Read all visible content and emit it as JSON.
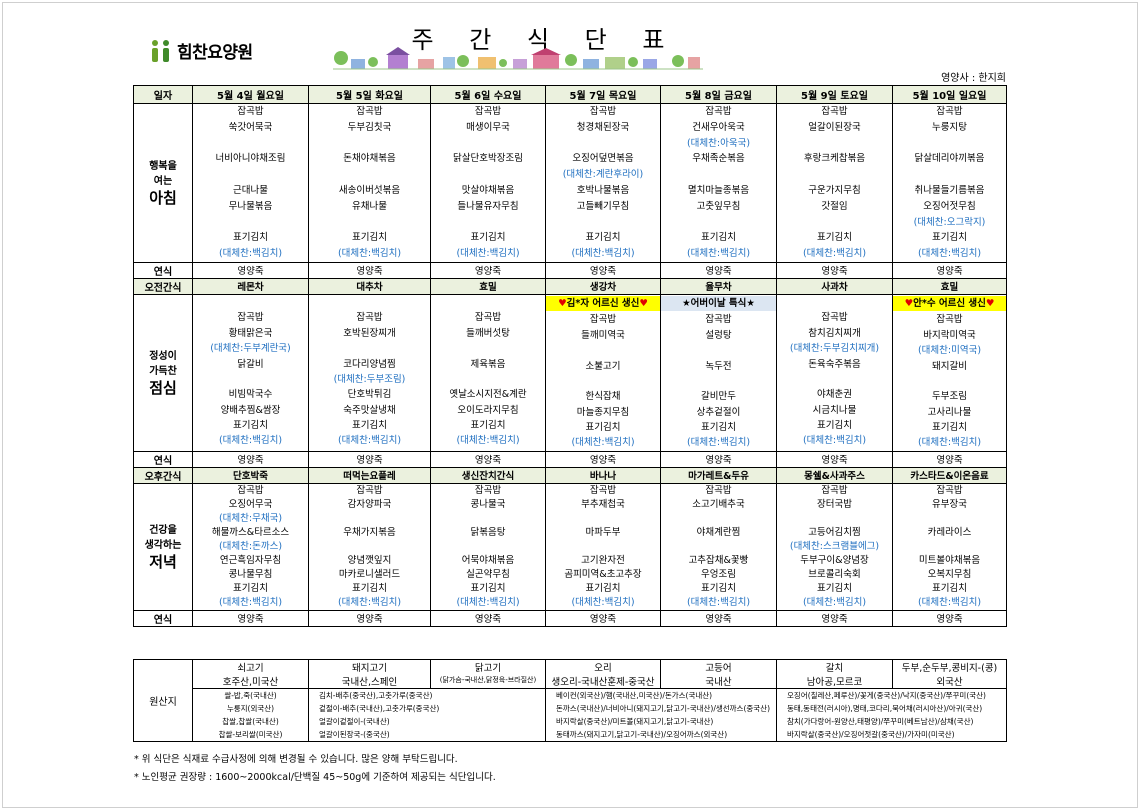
{
  "header": {
    "logo": "힘찬요양원",
    "title": "주 간 식 단 표",
    "dietitian": "영양사 : 한지희"
  },
  "menu": {
    "corner": "일자",
    "days": [
      "5월 4일 월요일",
      "5월 5일 화요일",
      "5월 6일 수요일",
      "5월 7일 목요일",
      "5월 8일 금요일",
      "5월 9일 토요일",
      "5월 10일 일요일"
    ],
    "sections": [
      {
        "label_lines": [
          "행복을",
          "여는",
          "아침"
        ],
        "rows": [
          [
            "잡곡밥",
            "잡곡밥",
            "잡곡밥",
            "잡곡밥",
            "잡곡밥",
            "잡곡밥",
            "잡곡밥"
          ],
          [
            "쑥갓어묵국",
            "두부김칫국",
            "매생이무국",
            "청경채된장국",
            "건새우아욱국",
            "얼갈이된장국",
            "누룽지탕"
          ],
          [
            null,
            null,
            null,
            null,
            "(대체찬:아욱국)",
            null,
            null
          ],
          [
            "너비아니야채조림",
            "돈채야채볶음",
            "닭살단호박장조림",
            "오징어덮면볶음",
            "우채족순볶음",
            "후랑크케찹볶음",
            "닭살데리야끼볶음"
          ],
          [
            null,
            null,
            null,
            "(대체찬:계란후라이)",
            null,
            null,
            null
          ],
          [
            "근대나물",
            "새송이버섯볶음",
            "맛살야채볶음",
            "호박나물볶음",
            "멸치마늘종볶음",
            "구운가지무침",
            "취나물들기름볶음"
          ],
          [
            "무나물볶음",
            "유채나물",
            "들나물유자무침",
            "고들빼기무침",
            "고춧잎무침",
            "갓절임",
            "오징어젓무침"
          ],
          [
            null,
            null,
            null,
            null,
            null,
            null,
            "(대체찬:오그락지)"
          ],
          [
            "표기김치",
            "표기김치",
            "표기김치",
            "표기김치",
            "표기김치",
            "표기김치",
            "표기김치"
          ],
          [
            "(대체찬:백김치)",
            "(대체찬:백김치)",
            "(대체찬:백김치)",
            "(대체찬:백김치)",
            "(대체찬:백김치)",
            "(대체찬:백김치)",
            "(대체찬:백김치)"
          ]
        ]
      },
      {
        "label": "연식",
        "values": [
          "영양죽",
          "영양죽",
          "영양죽",
          "영양죽",
          "영양죽",
          "영양죽",
          "영양죽"
        ]
      },
      {
        "label": "오전간식",
        "background": "#ebf1de",
        "values": [
          "레몬차",
          "대추차",
          "효밀",
          "생강차",
          "율무차",
          "사과차",
          "효밀"
        ]
      },
      {
        "label_lines": [
          "정성이",
          "가득찬",
          "점심"
        ],
        "rows": [
          [
            null,
            null,
            null,
            {
              "text": "김*자 어르신 생신",
              "symbol": "♥",
              "symbol_color": "#e00000",
              "background": "#ffff00"
            },
            {
              "text": "어버이날 특식",
              "symbol": "★",
              "symbol_color": "#000000",
              "background": "#dce6f2"
            },
            null,
            {
              "text": "안*수 어르신 생신",
              "symbol": "♥",
              "symbol_color": "#e00000",
              "background": "#ffff00"
            }
          ],
          [
            "잡곡밥",
            "잡곡밥",
            "잡곡밥",
            "잡곡밥",
            "잡곡밥",
            "잡곡밥",
            "잡곡밥"
          ],
          [
            "황태맑은국",
            "호박된장찌개",
            "들깨버섯탕",
            "들깨미역국",
            "설렁탕",
            "참치김치찌개",
            "바지락미역국"
          ],
          [
            "(대체찬:두부계란국)",
            null,
            null,
            null,
            null,
            "(대체찬:두부김치찌개)",
            "(대체찬:미역국)"
          ],
          [
            "닭갈비",
            "코다리양념찜",
            "제육볶음",
            "소불고기",
            "녹두전",
            "돈육숙주볶음",
            "돼지갈비"
          ],
          [
            null,
            "(대체찬:두부조림)",
            null,
            null,
            null,
            null,
            null
          ],
          [
            "비빔막국수",
            "단호박튀김",
            "옛날소시지전&계란",
            "한식잡채",
            "갈비만두",
            "야채춘권",
            "두부조림"
          ],
          [
            "양배추찜&쌈장",
            "숙주맛살냉채",
            "오이도라지무침",
            "마늘종지무침",
            "상추겉절이",
            "시금치나물",
            "고사리나물"
          ],
          [
            "표기김치",
            "표기김치",
            "표기김치",
            "표기김치",
            "표기김치",
            "표기김치",
            "표기김치"
          ],
          [
            "(대체찬:백김치)",
            "(대체찬:백김치)",
            "(대체찬:백김치)",
            "(대체찬:백김치)",
            "(대체찬:백김치)",
            "(대체찬:백김치)",
            "(대체찬:백김치)"
          ]
        ]
      },
      {
        "label": "연식",
        "values": [
          "영양죽",
          "영양죽",
          "영양죽",
          "영양죽",
          "영양죽",
          "영양죽",
          "영양죽"
        ]
      },
      {
        "label": "오후간식",
        "background": "#ebf1de",
        "values": [
          "단호박죽",
          "떠먹는요플레",
          "생신잔치간식",
          "바나나",
          "마가레트&두유",
          "몽쉘&사과주스",
          "카스타드&이온음료"
        ]
      },
      {
        "label_lines": [
          "건강을",
          "생각하는",
          "저녁"
        ],
        "rows": [
          [
            "잡곡밥",
            "잡곡밥",
            "잡곡밥",
            "잡곡밥",
            "잡곡밥",
            "잡곡밥",
            "잡곡밥"
          ],
          [
            "오징어무국",
            "감자양파국",
            "콩나물국",
            "부추재첩국",
            "소고기배추국",
            "장터국밥",
            "유부장국"
          ],
          [
            "(대체찬:무채국)",
            null,
            null,
            null,
            null,
            null,
            null
          ],
          [
            "해물까스&타르소스",
            "우채가지볶음",
            "닭볶음탕",
            "마파두부",
            "야채계란찜",
            "고등어김치찜",
            "카레라이스"
          ],
          [
            "(대체찬:돈까스)",
            null,
            null,
            null,
            null,
            "(대체찬:스크램블에그)",
            null
          ],
          [
            "연근흑임자무침",
            "양념깻잎지",
            "어묵야채볶음",
            "고기완자전",
            "고추잡채&꽃빵",
            "두부구이&양념장",
            "미트볼야채볶음"
          ],
          [
            "콩나물무침",
            "마카로니샐러드",
            "실곤약무침",
            "곰피미역&초고추장",
            "우엉조림",
            "브로콜리숙회",
            "오복지무침"
          ],
          [
            "표기김치",
            "표기김치",
            "표기김치",
            "표기김치",
            "표기김치",
            "표기김치",
            "표기김치"
          ],
          [
            "(대체찬:백김치)",
            "(대체찬:백김치)",
            "(대체찬:백김치)",
            "(대체찬:백김치)",
            "(대체찬:백김치)",
            "(대체찬:백김치)",
            "(대체찬:백김치)"
          ]
        ]
      },
      {
        "label": "연식",
        "values": [
          "영양죽",
          "영양죽",
          "영양죽",
          "영양죽",
          "영양죽",
          "영양죽",
          "영양죽"
        ]
      }
    ]
  },
  "origin": {
    "label": "원산지",
    "items": [
      {
        "name": "쇠고기",
        "source": "호주산,미국산"
      },
      {
        "name": "돼지고기",
        "source": "국내산,스페인"
      },
      {
        "name": "닭고기",
        "source": "(닭가슴-국내산,닭정육-브라질산)"
      },
      {
        "name": "오리",
        "source": "생오리-국내산훈제-중국산"
      },
      {
        "name": "고등어",
        "source": "국내산"
      },
      {
        "name": "갈치",
        "source": "남아공,모르코"
      },
      {
        "name": "두부,순두부,콩비지-(콩)",
        "source": "외국산"
      }
    ],
    "details": [
      [
        "쌀-밥,죽(국내산)",
        "누룽지(외국산)",
        "찹쌀,찹쌀(국내산)",
        "찹쌀-보리쌀(미국산)"
      ],
      [
        "김치-배추(중국산),고춧가루(중국산)",
        "겉절이-배추(국내산),고춧가루(중국산)",
        "얼갈이겉절이-(국내산)",
        "얼갈이된장국-(중국산)"
      ],
      [
        "베이컨(외국산)/햄(국내산,미국산)/돈가스(국내산)",
        "돈까스(국내산)/너비아니(돼지고기,닭고기-국내산)/생선까스(중국산)",
        "바지락살(중국산)/미트볼(돼지고기,닭고기-국내산)",
        "동태까스(돼지고기,닭고기-국내산)/오징어까스(외국산)"
      ],
      [
        "오징어(칠레산,페루산)/꽃게(중국산)/낙지(중국산)/쭈꾸미(국산)",
        "동태,동태전(러시아),명태,코다리,북어채(러시아산)/아귀(국산)",
        "참치(가다랑어-원양산,태평양)/쭈꾸미(베트남산)/삼채(국산)",
        "바지락살(중국산)/오징어젓갈(중국산)/가자미(미국산)"
      ]
    ]
  },
  "notes": [
    "* 위 식단은 식재료 수급사정에 의해 변경될 수 있습니다. 많은 양해 부탁드립니다.",
    "* 노인평균 권장량 : 1600~2000kcal/단백질 45~50g에 기준하여 제공되는 식단입니다."
  ]
}
